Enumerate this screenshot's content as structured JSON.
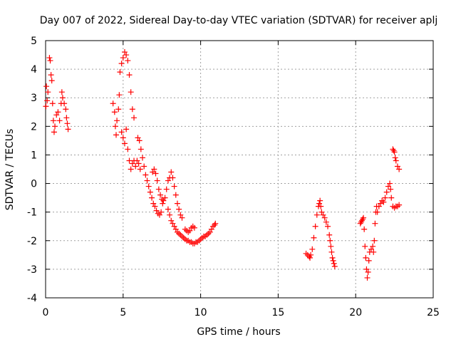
{
  "chart_data": {
    "type": "scatter",
    "title": "Day 007 of 2022, Sidereal Day-to-day VTEC variation (SDTVAR) for receiver aplj",
    "xlabel": "GPS time / hours",
    "ylabel": "SDTVAR / TECUs",
    "xlim": [
      0,
      25
    ],
    "ylim": [
      -4,
      5
    ],
    "x_ticks": [
      0,
      5,
      10,
      15,
      20,
      25
    ],
    "y_ticks": [
      -4,
      -3,
      -2,
      -1,
      0,
      1,
      2,
      3,
      4,
      5
    ],
    "x_tick_labels": [
      "0",
      "5",
      "10",
      "15",
      "20",
      "25"
    ],
    "y_tick_labels": [
      "-4",
      "-3",
      "-2",
      "-1",
      "0",
      "1",
      "2",
      "3",
      "4",
      "5"
    ],
    "grid": true,
    "marker": "+",
    "color": "#ff0000",
    "series": [
      {
        "name": "SDTVAR",
        "points": [
          [
            0.02,
            2.7
          ],
          [
            0.05,
            3.4
          ],
          [
            0.1,
            2.9
          ],
          [
            0.15,
            3.2
          ],
          [
            0.25,
            4.4
          ],
          [
            0.3,
            4.3
          ],
          [
            0.35,
            3.8
          ],
          [
            0.4,
            3.6
          ],
          [
            0.45,
            2.8
          ],
          [
            0.5,
            2.2
          ],
          [
            0.55,
            1.8
          ],
          [
            0.6,
            2.0
          ],
          [
            0.7,
            2.4
          ],
          [
            0.8,
            2.5
          ],
          [
            0.9,
            2.2
          ],
          [
            1.0,
            2.8
          ],
          [
            1.05,
            3.2
          ],
          [
            1.1,
            3.0
          ],
          [
            1.2,
            2.8
          ],
          [
            1.3,
            2.6
          ],
          [
            1.35,
            2.3
          ],
          [
            1.4,
            2.1
          ],
          [
            1.45,
            1.9
          ],
          [
            4.35,
            2.8
          ],
          [
            4.45,
            2.5
          ],
          [
            4.5,
            2.0
          ],
          [
            4.55,
            1.7
          ],
          [
            4.6,
            2.2
          ],
          [
            4.7,
            2.6
          ],
          [
            4.75,
            3.1
          ],
          [
            4.8,
            3.9
          ],
          [
            4.9,
            4.2
          ],
          [
            5.0,
            4.4
          ],
          [
            5.1,
            4.6
          ],
          [
            5.2,
            4.5
          ],
          [
            5.3,
            4.3
          ],
          [
            5.4,
            3.8
          ],
          [
            5.5,
            3.2
          ],
          [
            5.6,
            2.6
          ],
          [
            5.7,
            2.3
          ],
          [
            4.9,
            1.8
          ],
          [
            5.0,
            1.6
          ],
          [
            5.1,
            1.4
          ],
          [
            5.2,
            1.9
          ],
          [
            5.3,
            1.2
          ],
          [
            5.4,
            0.8
          ],
          [
            5.5,
            0.5
          ],
          [
            5.6,
            0.7
          ],
          [
            5.7,
            0.8
          ],
          [
            5.8,
            0.6
          ],
          [
            5.9,
            0.8
          ],
          [
            6.0,
            0.7
          ],
          [
            6.1,
            0.5
          ],
          [
            5.95,
            1.6
          ],
          [
            6.05,
            1.5
          ],
          [
            6.15,
            1.2
          ],
          [
            6.25,
            0.9
          ],
          [
            6.35,
            0.6
          ],
          [
            6.45,
            0.3
          ],
          [
            6.55,
            0.1
          ],
          [
            6.65,
            -0.1
          ],
          [
            6.75,
            -0.3
          ],
          [
            6.85,
            -0.5
          ],
          [
            6.95,
            -0.7
          ],
          [
            7.05,
            -0.8
          ],
          [
            7.15,
            -0.95
          ],
          [
            7.25,
            -1.05
          ],
          [
            7.35,
            -1.1
          ],
          [
            7.45,
            -1.0
          ],
          [
            7.55,
            -0.7
          ],
          [
            6.9,
            0.4
          ],
          [
            7.0,
            0.5
          ],
          [
            7.1,
            0.35
          ],
          [
            7.2,
            0.1
          ],
          [
            7.3,
            -0.2
          ],
          [
            7.4,
            -0.4
          ],
          [
            7.5,
            -0.55
          ],
          [
            7.6,
            -0.6
          ],
          [
            7.7,
            -0.5
          ],
          [
            7.8,
            -0.2
          ],
          [
            7.9,
            0.1
          ],
          [
            8.0,
            0.2
          ],
          [
            8.1,
            0.4
          ],
          [
            8.2,
            0.2
          ],
          [
            8.3,
            -0.1
          ],
          [
            8.4,
            -0.4
          ],
          [
            8.5,
            -0.7
          ],
          [
            8.6,
            -0.9
          ],
          [
            8.7,
            -1.1
          ],
          [
            8.8,
            -1.2
          ],
          [
            7.9,
            -0.9
          ],
          [
            8.0,
            -1.1
          ],
          [
            8.1,
            -1.3
          ],
          [
            8.2,
            -1.4
          ],
          [
            8.3,
            -1.5
          ],
          [
            8.4,
            -1.6
          ],
          [
            8.5,
            -1.7
          ],
          [
            8.6,
            -1.75
          ],
          [
            8.7,
            -1.8
          ],
          [
            8.8,
            -1.85
          ],
          [
            8.9,
            -1.9
          ],
          [
            9.0,
            -1.95
          ],
          [
            9.1,
            -2.0
          ],
          [
            9.2,
            -2.0
          ],
          [
            9.3,
            -2.05
          ],
          [
            9.4,
            -2.05
          ],
          [
            9.5,
            -2.1
          ],
          [
            9.6,
            -2.1
          ],
          [
            9.7,
            -2.05
          ],
          [
            9.8,
            -2.05
          ],
          [
            9.9,
            -2.0
          ],
          [
            9.0,
            -1.6
          ],
          [
            9.1,
            -1.65
          ],
          [
            9.2,
            -1.7
          ],
          [
            9.3,
            -1.65
          ],
          [
            9.4,
            -1.55
          ],
          [
            9.5,
            -1.5
          ],
          [
            9.6,
            -1.55
          ],
          [
            10.0,
            -1.95
          ],
          [
            10.1,
            -1.9
          ],
          [
            10.2,
            -1.85
          ],
          [
            10.3,
            -1.85
          ],
          [
            10.4,
            -1.8
          ],
          [
            10.5,
            -1.75
          ],
          [
            10.6,
            -1.7
          ],
          [
            10.7,
            -1.6
          ],
          [
            10.8,
            -1.5
          ],
          [
            10.9,
            -1.45
          ],
          [
            10.95,
            -1.4
          ],
          [
            16.8,
            -2.45
          ],
          [
            16.9,
            -2.5
          ],
          [
            17.0,
            -2.55
          ],
          [
            17.05,
            -2.6
          ],
          [
            17.1,
            -2.5
          ],
          [
            17.2,
            -2.3
          ],
          [
            17.3,
            -1.9
          ],
          [
            17.4,
            -1.5
          ],
          [
            17.5,
            -1.1
          ],
          [
            17.6,
            -0.8
          ],
          [
            17.65,
            -0.7
          ],
          [
            17.7,
            -0.6
          ],
          [
            17.75,
            -0.8
          ],
          [
            17.8,
            -1.0
          ],
          [
            17.9,
            -1.1
          ],
          [
            18.0,
            -1.2
          ],
          [
            18.1,
            -1.35
          ],
          [
            18.2,
            -1.5
          ],
          [
            18.3,
            -1.8
          ],
          [
            18.35,
            -2.0
          ],
          [
            18.4,
            -2.2
          ],
          [
            18.45,
            -2.4
          ],
          [
            18.5,
            -2.6
          ],
          [
            18.55,
            -2.7
          ],
          [
            18.6,
            -2.8
          ],
          [
            18.65,
            -2.9
          ],
          [
            20.3,
            -1.4
          ],
          [
            20.35,
            -1.35
          ],
          [
            20.4,
            -1.3
          ],
          [
            20.45,
            -1.25
          ],
          [
            20.5,
            -1.2
          ],
          [
            20.55,
            -1.6
          ],
          [
            20.6,
            -2.2
          ],
          [
            20.65,
            -2.6
          ],
          [
            20.7,
            -3.0
          ],
          [
            20.75,
            -3.3
          ],
          [
            20.8,
            -3.1
          ],
          [
            20.85,
            -2.7
          ],
          [
            20.9,
            -2.4
          ],
          [
            21.0,
            -2.3
          ],
          [
            21.1,
            -2.2
          ],
          [
            21.15,
            -2.4
          ],
          [
            21.2,
            -2.0
          ],
          [
            21.25,
            -1.4
          ],
          [
            21.3,
            -1.0
          ],
          [
            21.35,
            -0.8
          ],
          [
            21.4,
            -1.0
          ],
          [
            21.5,
            -0.8
          ],
          [
            21.6,
            -0.7
          ],
          [
            21.7,
            -0.6
          ],
          [
            21.8,
            -0.65
          ],
          [
            21.9,
            -0.5
          ],
          [
            22.0,
            -0.3
          ],
          [
            22.1,
            -0.1
          ],
          [
            22.2,
            0.0
          ],
          [
            22.25,
            -0.2
          ],
          [
            22.3,
            -0.5
          ],
          [
            22.4,
            -0.8
          ],
          [
            22.5,
            -0.85
          ],
          [
            22.6,
            -0.8
          ],
          [
            22.7,
            -0.8
          ],
          [
            22.8,
            -0.75
          ],
          [
            22.4,
            1.2
          ],
          [
            22.45,
            1.15
          ],
          [
            22.5,
            1.1
          ],
          [
            22.55,
            0.9
          ],
          [
            22.6,
            0.8
          ],
          [
            22.7,
            0.6
          ],
          [
            22.8,
            0.5
          ]
        ]
      }
    ]
  }
}
